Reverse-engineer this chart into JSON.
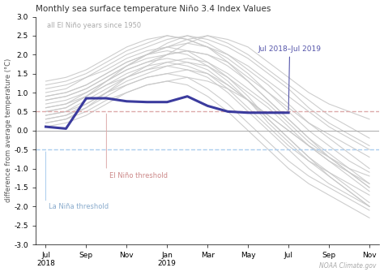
{
  "title": "Monthly sea surface temperature Niño 3.4 Index Values",
  "ylabel": "difference from average temperature (°C)",
  "ylim": [
    -3.0,
    3.0
  ],
  "yticks": [
    -3.0,
    -2.5,
    -2.0,
    -1.5,
    -1.0,
    -0.5,
    0.0,
    0.5,
    1.0,
    1.5,
    2.0,
    2.5,
    3.0
  ],
  "x_labels": [
    "Jul\n2018",
    "Sep",
    "Nov",
    "Jan\n2019",
    "Mar",
    "May",
    "Jul",
    "Sep",
    "Nov"
  ],
  "x_tick_positions": [
    0,
    2,
    4,
    6,
    8,
    10,
    12,
    14,
    16
  ],
  "n_points": 17,
  "el_nino_threshold": 0.5,
  "la_nina_threshold": -0.5,
  "highlight_color": "#3b3b9e",
  "background_color": "#ffffff",
  "gray_color": "#c8c8c8",
  "el_nino_label_color": "#cc8888",
  "la_nina_label_color": "#88aacc",
  "el_nino_line_color": "#ddaaaa",
  "la_nina_line_color": "#aaccee",
  "annotation_color": "#5555aa",
  "watermark": "NOAA Climate.gov",
  "gray_label": "all El Niño years since 1950",
  "highlight_label": "Jul 2018–Jul 2019",
  "highlight_series": [
    0.1,
    0.05,
    0.85,
    0.85,
    0.77,
    0.75,
    0.75,
    0.9,
    0.65,
    0.5,
    0.47,
    0.47,
    0.47,
    null,
    null,
    null,
    null
  ],
  "gray_series": [
    [
      0.2,
      0.3,
      0.6,
      1.0,
      1.4,
      1.7,
      2.0,
      2.3,
      2.5,
      2.4,
      2.2,
      1.8,
      1.4,
      1.0,
      0.7,
      0.5,
      0.3
    ],
    [
      0.5,
      0.6,
      0.9,
      1.3,
      1.7,
      2.0,
      2.3,
      2.5,
      2.4,
      2.2,
      1.9,
      1.5,
      1.1,
      0.6,
      0.2,
      -0.1,
      -0.4
    ],
    [
      0.8,
      0.9,
      1.1,
      1.4,
      1.7,
      2.0,
      2.2,
      2.4,
      2.5,
      2.3,
      2.0,
      1.6,
      1.2,
      0.8,
      0.4,
      0.1,
      -0.2
    ],
    [
      1.0,
      1.1,
      1.4,
      1.7,
      2.0,
      2.2,
      2.4,
      2.5,
      2.3,
      2.0,
      1.6,
      1.2,
      0.7,
      0.2,
      -0.2,
      -0.6,
      -1.0
    ],
    [
      1.2,
      1.3,
      1.5,
      1.8,
      2.1,
      2.3,
      2.5,
      2.4,
      2.2,
      1.8,
      1.3,
      0.8,
      0.3,
      -0.2,
      -0.6,
      -1.0,
      -1.4
    ],
    [
      0.6,
      0.7,
      1.0,
      1.3,
      1.6,
      1.8,
      2.0,
      2.1,
      2.0,
      1.7,
      1.3,
      0.8,
      0.3,
      -0.2,
      -0.7,
      -1.1,
      -1.5
    ],
    [
      0.4,
      0.5,
      0.8,
      1.1,
      1.4,
      1.6,
      1.8,
      1.9,
      1.8,
      1.5,
      1.1,
      0.7,
      0.2,
      -0.3,
      -0.7,
      -1.1,
      -1.5
    ],
    [
      0.3,
      0.4,
      0.7,
      1.0,
      1.3,
      1.5,
      1.7,
      1.8,
      1.7,
      1.4,
      1.0,
      0.6,
      0.1,
      -0.4,
      -0.8,
      -1.2,
      -1.6
    ],
    [
      0.7,
      0.8,
      1.0,
      1.3,
      1.6,
      1.8,
      1.9,
      1.8,
      1.6,
      1.2,
      0.8,
      0.3,
      -0.2,
      -0.7,
      -1.1,
      -1.5,
      -1.9
    ],
    [
      0.9,
      1.0,
      1.2,
      1.5,
      1.8,
      2.0,
      2.1,
      2.0,
      1.7,
      1.3,
      0.8,
      0.2,
      -0.3,
      -0.8,
      -1.2,
      -1.6,
      -2.0
    ],
    [
      1.1,
      1.2,
      1.4,
      1.6,
      1.9,
      2.1,
      2.2,
      2.1,
      1.8,
      1.4,
      0.9,
      0.3,
      -0.2,
      -0.7,
      -1.2,
      -1.6,
      -2.0
    ],
    [
      0.5,
      0.6,
      0.9,
      1.2,
      1.4,
      1.6,
      1.7,
      1.6,
      1.4,
      1.0,
      0.5,
      0.0,
      -0.5,
      -1.0,
      -1.4,
      -1.7,
      -2.0
    ],
    [
      0.3,
      0.4,
      0.6,
      0.9,
      1.2,
      1.4,
      1.5,
      1.4,
      1.1,
      0.7,
      0.2,
      -0.3,
      -0.8,
      -1.2,
      -1.5,
      -1.8,
      -2.1
    ],
    [
      0.1,
      0.2,
      0.4,
      0.7,
      1.0,
      1.2,
      1.3,
      1.2,
      0.9,
      0.5,
      0.0,
      -0.5,
      -1.0,
      -1.4,
      -1.7,
      -2.0,
      -2.3
    ],
    [
      0.6,
      0.7,
      0.9,
      1.2,
      1.5,
      1.7,
      1.8,
      1.7,
      1.5,
      1.1,
      0.6,
      0.1,
      -0.4,
      -0.8,
      -1.1,
      -1.4,
      -1.7
    ],
    [
      0.4,
      0.5,
      0.7,
      1.0,
      1.2,
      1.4,
      1.5,
      1.6,
      1.5,
      1.2,
      0.8,
      0.4,
      0.0,
      -0.4,
      -0.8,
      -1.1,
      -1.4
    ],
    [
      0.8,
      0.9,
      1.1,
      1.4,
      1.7,
      1.9,
      2.0,
      2.1,
      2.0,
      1.8,
      1.4,
      1.0,
      0.6,
      0.2,
      -0.1,
      -0.4,
      -0.7
    ],
    [
      1.3,
      1.4,
      1.6,
      1.9,
      2.2,
      2.4,
      2.5,
      2.4,
      2.2,
      1.9,
      1.5,
      1.0,
      0.5,
      0.0,
      -0.4,
      -0.8,
      -1.1
    ],
    [
      0.2,
      0.3,
      0.5,
      0.8,
      1.0,
      1.2,
      1.3,
      1.4,
      1.3,
      1.1,
      0.8,
      0.4,
      0.0,
      -0.4,
      -0.7,
      -1.0,
      -1.2
    ],
    [
      0.9,
      1.0,
      1.2,
      1.5,
      1.8,
      2.0,
      2.2,
      2.3,
      2.2,
      2.0,
      1.7,
      1.3,
      0.9,
      0.5,
      0.1,
      -0.2,
      -0.5
    ]
  ]
}
